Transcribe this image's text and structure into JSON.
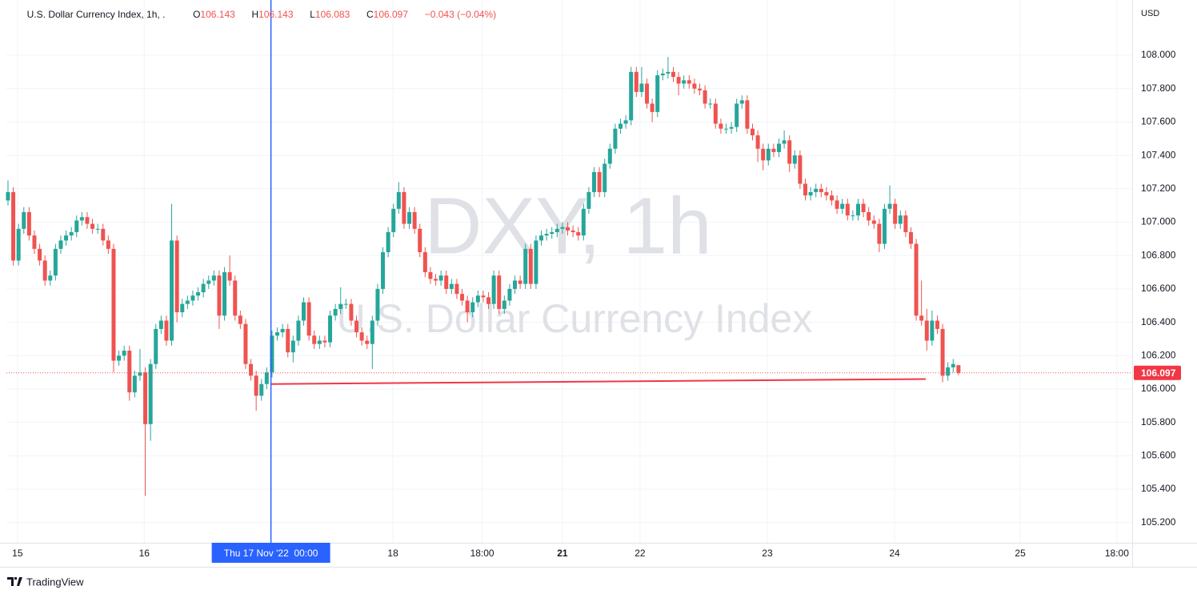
{
  "chart_data": {
    "type": "candlestick",
    "header": {
      "symbol": "U.S. Dollar Currency Index, 1h, .",
      "o": "O",
      "h": "H",
      "l": "L",
      "c": "C",
      "change": "−0.043 (−0.04%)"
    },
    "watermark": {
      "ticker": "DXY, 1h",
      "name": "U.S. Dollar Currency Index"
    },
    "currency": "USD",
    "brand": "TradingView",
    "up_color": "#26a69a",
    "down_color": "#ef5350",
    "grid": true,
    "xlim": [
      -0.3,
      212.9
    ],
    "xticks": [
      {
        "value": 1.8,
        "label": "15"
      },
      {
        "value": 25.8,
        "label": "16"
      },
      {
        "value": 72.9,
        "label": "18"
      },
      {
        "value": 89.8,
        "label": "18:00"
      },
      {
        "value": 105,
        "label": "21",
        "bold": true
      },
      {
        "value": 119.7,
        "label": "22"
      },
      {
        "value": 143.8,
        "label": "23"
      },
      {
        "value": 167.9,
        "label": "24"
      },
      {
        "value": 191.7,
        "label": "25"
      },
      {
        "value": 210,
        "label": "18:00"
      }
    ],
    "crosshair": {
      "x": 49.8,
      "label": "Thu 17 Nov '22  00:00",
      "color": "#2962ff"
    },
    "ylim": [
      105.079,
      108.331
    ],
    "yticks": [
      {
        "value": 105.2,
        "label": "105.200"
      },
      {
        "value": 105.4,
        "label": "105.400"
      },
      {
        "value": 105.6,
        "label": "105.600"
      },
      {
        "value": 105.8,
        "label": "105.800"
      },
      {
        "value": 106,
        "label": "106.000"
      },
      {
        "value": 106.2,
        "label": "106.200"
      },
      {
        "value": 106.4,
        "label": "106.400"
      },
      {
        "value": 106.6,
        "label": "106.600"
      },
      {
        "value": 106.8,
        "label": "106.800"
      },
      {
        "value": 107,
        "label": "107.000"
      },
      {
        "value": 107.2,
        "label": "107.200"
      },
      {
        "value": 107.4,
        "label": "107.400"
      },
      {
        "value": 107.6,
        "label": "107.600"
      },
      {
        "value": 107.8,
        "label": "107.800"
      },
      {
        "value": 108,
        "label": "108.000"
      }
    ],
    "last_price": 106.097,
    "trend_line": {
      "x": [
        49.8,
        173.8
      ],
      "y": [
        106.03,
        106.06
      ],
      "color": "#f23645"
    },
    "open": [
      107.13,
      107.18,
      106.77,
      106.96,
      107.06,
      106.92,
      106.84,
      106.77,
      106.65,
      106.68,
      106.84,
      106.89,
      106.92,
      106.94,
      107.01,
      107.03,
      106.99,
      106.96,
      106.96,
      106.89,
      106.84,
      106.17,
      106.2,
      106.23,
      105.98,
      106.08,
      106.1,
      105.79,
      106.15,
      106.36,
      106.41,
      106.29,
      106.89,
      106.46,
      106.51,
      106.53,
      106.56,
      106.58,
      106.63,
      106.65,
      106.68,
      106.44,
      106.7,
      106.65,
      106.44,
      106.39,
      106.15,
      106.08,
      105.96,
      106.03,
      106.1,
      106.32,
      106.34,
      106.36,
      106.22,
      106.29,
      106.41,
      106.52,
      106.32,
      106.27,
      106.29,
      106.28,
      106.44,
      106.48,
      106.51,
      106.51,
      106.41,
      106.34,
      106.29,
      106.27,
      106.41,
      106.6,
      106.82,
      106.94,
      107.08,
      107.18,
      106.99,
      107.06,
      106.96,
      106.82,
      106.7,
      106.66,
      106.65,
      106.68,
      106.6,
      106.63,
      106.57,
      106.53,
      106.46,
      106.52,
      106.56,
      106.55,
      106.51,
      106.68,
      106.48,
      106.53,
      106.6,
      106.65,
      106.63,
      106.84,
      106.63,
      106.89,
      106.92,
      106.93,
      106.94,
      106.96,
      106.97,
      106.95,
      106.94,
      106.92,
      107.08,
      107.18,
      107.3,
      107.18,
      107.35,
      107.44,
      107.56,
      107.59,
      107.61,
      107.9,
      107.78,
      107.83,
      107.71,
      107.66,
      107.88,
      107.89,
      107.9,
      107.87,
      107.83,
      107.85,
      107.83,
      107.8,
      107.79,
      107.71,
      107.71,
      107.59,
      107.56,
      107.56,
      107.57,
      107.71,
      107.73,
      107.56,
      107.52,
      107.44,
      107.37,
      107.44,
      107.42,
      107.47,
      107.49,
      107.35,
      107.4,
      107.23,
      107.16,
      107.18,
      107.2,
      107.18,
      107.16,
      107.13,
      107.08,
      107.11,
      107.04,
      107.04,
      107.11,
      107.06,
      107.01,
      106.99,
      106.87,
      107.08,
      107.11,
      106.99,
      107.04,
      106.94,
      106.87,
      106.44,
      106.41,
      106.29,
      106.41,
      106.36,
      106.08,
      106.13,
      106.143
    ],
    "high": [
      107.25,
      107.21,
      106.99,
      107.09,
      107.09,
      106.95,
      106.87,
      106.8,
      106.71,
      106.87,
      106.92,
      106.95,
      106.97,
      107.04,
      107.06,
      107.06,
      107.02,
      106.99,
      106.99,
      106.92,
      106.87,
      106.23,
      106.26,
      106.26,
      106.11,
      106.24,
      106.13,
      106.18,
      106.39,
      106.44,
      106.44,
      107.11,
      106.92,
      106.54,
      106.56,
      106.59,
      106.61,
      106.66,
      106.68,
      106.71,
      106.71,
      106.73,
      106.8,
      106.68,
      106.47,
      106.42,
      106.18,
      106.11,
      106.06,
      106.13,
      106.35,
      106.37,
      106.39,
      106.39,
      106.32,
      106.44,
      106.55,
      106.55,
      106.35,
      106.32,
      106.32,
      106.47,
      106.51,
      106.61,
      106.54,
      106.54,
      106.44,
      106.37,
      106.32,
      106.44,
      106.63,
      106.85,
      106.97,
      107.11,
      107.24,
      107.21,
      107.09,
      107.09,
      106.99,
      106.85,
      106.73,
      106.69,
      106.71,
      106.71,
      106.66,
      106.66,
      106.6,
      106.56,
      106.55,
      106.59,
      106.59,
      106.58,
      106.71,
      106.71,
      106.56,
      106.63,
      106.68,
      106.68,
      106.87,
      106.87,
      106.92,
      106.95,
      106.96,
      106.97,
      106.99,
      107.0,
      107.0,
      106.98,
      106.97,
      107.11,
      107.21,
      107.33,
      107.33,
      107.38,
      107.47,
      107.59,
      107.62,
      107.64,
      107.93,
      107.93,
      107.93,
      107.86,
      107.74,
      107.91,
      107.92,
      107.99,
      107.93,
      107.9,
      107.88,
      107.88,
      107.86,
      107.83,
      107.82,
      107.74,
      107.74,
      107.62,
      107.59,
      107.6,
      107.74,
      107.76,
      107.76,
      107.59,
      107.55,
      107.47,
      107.47,
      107.47,
      107.5,
      107.55,
      107.52,
      107.43,
      107.43,
      107.26,
      107.21,
      107.23,
      107.23,
      107.21,
      107.19,
      107.16,
      107.14,
      107.14,
      107.07,
      107.14,
      107.14,
      107.09,
      107.04,
      107.02,
      107.11,
      107.22,
      107.14,
      107.07,
      107.07,
      106.97,
      106.9,
      106.65,
      106.48,
      106.47,
      106.44,
      106.39,
      106.16,
      106.18,
      106.143
    ],
    "low": [
      107.1,
      106.74,
      106.74,
      106.93,
      106.89,
      106.81,
      106.74,
      106.62,
      106.62,
      106.65,
      106.81,
      106.86,
      106.89,
      106.91,
      106.98,
      106.96,
      106.93,
      106.93,
      106.86,
      106.81,
      106.1,
      106.14,
      106.17,
      105.93,
      105.95,
      106.05,
      105.36,
      105.69,
      106.12,
      106.33,
      106.26,
      106.26,
      106.4,
      106.43,
      106.48,
      106.5,
      106.53,
      106.55,
      106.6,
      106.62,
      106.36,
      106.41,
      106.62,
      106.41,
      106.36,
      106.12,
      106.05,
      105.87,
      105.93,
      106.0,
      106.07,
      106.29,
      106.31,
      106.19,
      106.16,
      106.26,
      106.38,
      106.29,
      106.24,
      106.24,
      106.25,
      106.25,
      106.41,
      106.45,
      106.48,
      106.38,
      106.31,
      106.26,
      106.24,
      106.12,
      106.38,
      106.57,
      106.79,
      106.91,
      107.05,
      106.96,
      106.96,
      106.93,
      106.79,
      106.67,
      106.63,
      106.62,
      106.62,
      106.57,
      106.57,
      106.54,
      106.5,
      106.4,
      106.43,
      106.49,
      106.52,
      106.48,
      106.48,
      106.45,
      106.45,
      106.5,
      106.57,
      106.6,
      106.6,
      106.6,
      106.6,
      106.86,
      106.89,
      106.9,
      106.91,
      106.93,
      106.92,
      106.91,
      106.89,
      106.89,
      107.05,
      107.15,
      107.15,
      107.15,
      107.32,
      107.41,
      107.53,
      107.56,
      107.58,
      107.75,
      107.75,
      107.68,
      107.6,
      107.63,
      107.85,
      107.86,
      107.84,
      107.76,
      107.8,
      107.8,
      107.77,
      107.76,
      107.68,
      107.68,
      107.56,
      107.53,
      107.53,
      107.53,
      107.54,
      107.68,
      107.53,
      107.49,
      107.36,
      107.31,
      107.34,
      107.39,
      107.39,
      107.44,
      107.3,
      107.32,
      107.2,
      107.13,
      107.13,
      107.15,
      107.15,
      107.13,
      107.1,
      107.05,
      107.05,
      107.01,
      107.01,
      107.01,
      107.03,
      106.98,
      106.96,
      106.82,
      106.84,
      107.05,
      106.96,
      106.96,
      106.91,
      106.84,
      106.41,
      106.38,
      106.23,
      106.26,
      106.33,
      106.04,
      106.05,
      106.1,
      106.083
    ],
    "close": [
      107.18,
      106.77,
      106.96,
      107.06,
      106.92,
      106.84,
      106.77,
      106.65,
      106.68,
      106.84,
      106.89,
      106.92,
      106.94,
      107.01,
      107.03,
      106.99,
      106.96,
      106.96,
      106.89,
      106.84,
      106.17,
      106.2,
      106.23,
      105.98,
      106.08,
      106.1,
      105.79,
      106.15,
      106.36,
      106.41,
      106.29,
      106.89,
      106.46,
      106.51,
      106.53,
      106.56,
      106.58,
      106.63,
      106.65,
      106.68,
      106.44,
      106.7,
      106.65,
      106.44,
      106.39,
      106.15,
      106.08,
      105.96,
      106.03,
      106.1,
      106.32,
      106.34,
      106.36,
      106.22,
      106.29,
      106.41,
      106.52,
      106.32,
      106.27,
      106.29,
      106.28,
      106.44,
      106.48,
      106.51,
      106.51,
      106.41,
      106.34,
      106.29,
      106.27,
      106.41,
      106.6,
      106.82,
      106.94,
      107.08,
      107.18,
      106.99,
      107.06,
      106.96,
      106.82,
      106.7,
      106.66,
      106.65,
      106.68,
      106.6,
      106.63,
      106.57,
      106.53,
      106.46,
      106.52,
      106.56,
      106.55,
      106.51,
      106.68,
      106.48,
      106.53,
      106.6,
      106.65,
      106.63,
      106.84,
      106.63,
      106.89,
      106.92,
      106.93,
      106.94,
      106.96,
      106.97,
      106.95,
      106.94,
      106.92,
      107.08,
      107.18,
      107.3,
      107.18,
      107.35,
      107.44,
      107.56,
      107.59,
      107.61,
      107.9,
      107.78,
      107.83,
      107.71,
      107.66,
      107.88,
      107.89,
      107.9,
      107.87,
      107.83,
      107.85,
      107.83,
      107.8,
      107.79,
      107.71,
      107.71,
      107.59,
      107.56,
      107.56,
      107.57,
      107.71,
      107.73,
      107.56,
      107.52,
      107.44,
      107.37,
      107.44,
      107.42,
      107.47,
      107.49,
      107.35,
      107.4,
      107.23,
      107.16,
      107.18,
      107.2,
      107.18,
      107.16,
      107.13,
      107.08,
      107.11,
      107.04,
      107.04,
      107.11,
      107.06,
      107.01,
      106.99,
      106.87,
      107.08,
      107.11,
      106.99,
      107.04,
      106.94,
      106.87,
      106.44,
      106.41,
      106.29,
      106.41,
      106.36,
      106.08,
      106.13,
      106.15,
      106.097
    ]
  }
}
